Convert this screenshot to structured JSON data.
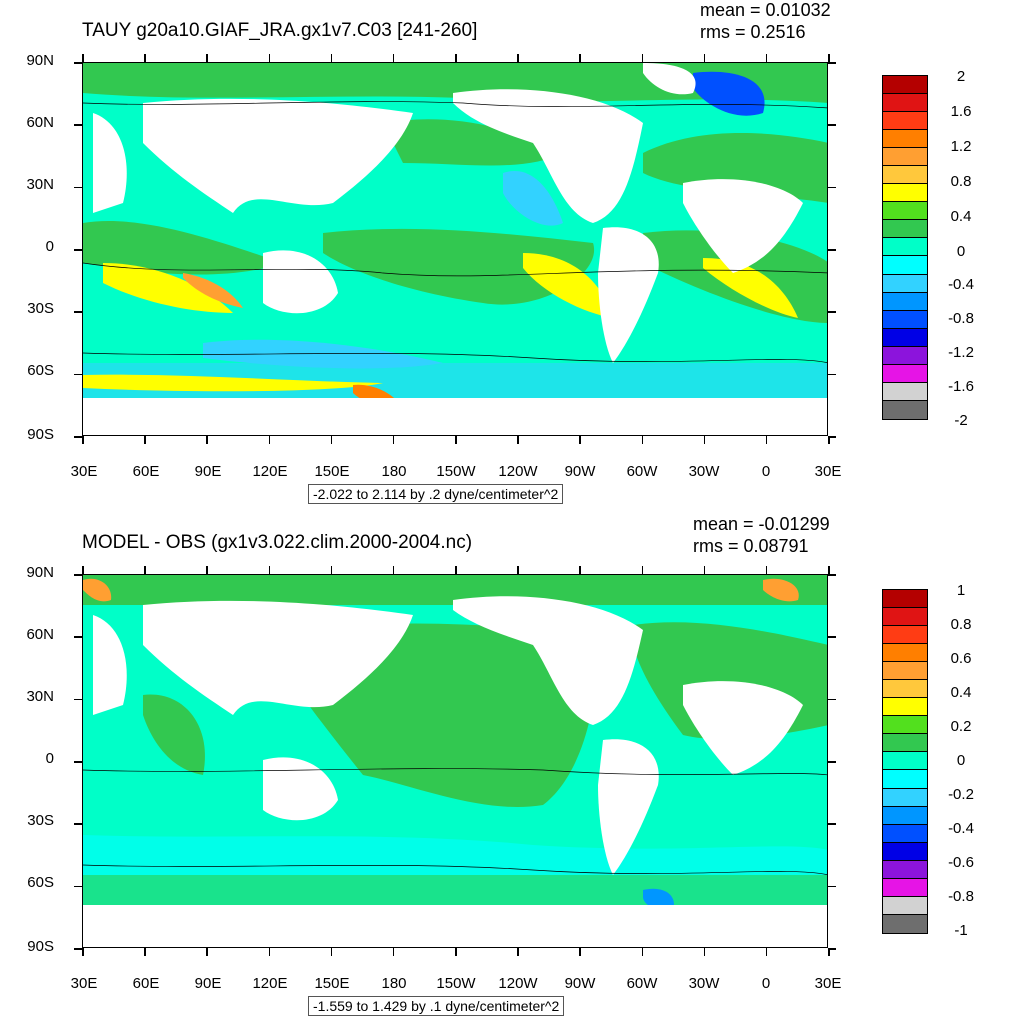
{
  "panels": [
    {
      "title": "TAUY g20a10.GIAF_JRA.gx1v7.C03 [241-260]",
      "mean": "mean = 0.01032",
      "rms": "rms = 0.2516",
      "range": "-2.022 to 2.114 by .2 dyne/centimeter^2",
      "colorbar_labels": [
        "2",
        "1.6",
        "1.2",
        "0.8",
        "0.4",
        "0",
        "-0.4",
        "-0.8",
        "-1.2",
        "-1.6",
        "-2"
      ],
      "colorbar_colors": [
        "#b40000",
        "#e01414",
        "#ff3c14",
        "#ff7f00",
        "#ff9f32",
        "#ffc83c",
        "#ffff00",
        "#52e01e",
        "#32c850",
        "#00ffc8",
        "#00ffff",
        "#32d2ff",
        "#0096ff",
        "#0050ff",
        "#0000e6",
        "#8c14dc",
        "#e614e6",
        "#d2d2d2",
        "#6e6e6e"
      ]
    },
    {
      "title": "MODEL - OBS (gx1v3.022.clim.2000-2004.nc)",
      "mean": "mean = -0.01299",
      "rms": "rms = 0.08791",
      "range": "-1.559 to 1.429 by .1 dyne/centimeter^2",
      "colorbar_labels": [
        "1",
        "0.8",
        "0.6",
        "0.4",
        "0.2",
        "0",
        "-0.2",
        "-0.4",
        "-0.6",
        "-0.8",
        "-1"
      ],
      "colorbar_colors": [
        "#b40000",
        "#e01414",
        "#ff3c14",
        "#ff7f00",
        "#ff9f32",
        "#ffc83c",
        "#ffff00",
        "#52e01e",
        "#32c850",
        "#00ffc8",
        "#00ffff",
        "#32d2ff",
        "#0096ff",
        "#0050ff",
        "#0000e6",
        "#8c14dc",
        "#e614e6",
        "#d2d2d2",
        "#6e6e6e"
      ]
    }
  ],
  "axes": {
    "lat_labels": [
      "90N",
      "60N",
      "30N",
      "0",
      "30S",
      "60S",
      "90S"
    ],
    "lon_labels": [
      "30E",
      "60E",
      "90E",
      "120E",
      "150E",
      "180",
      "150W",
      "120W",
      "90W",
      "60W",
      "30W",
      "0",
      "30E"
    ]
  }
}
